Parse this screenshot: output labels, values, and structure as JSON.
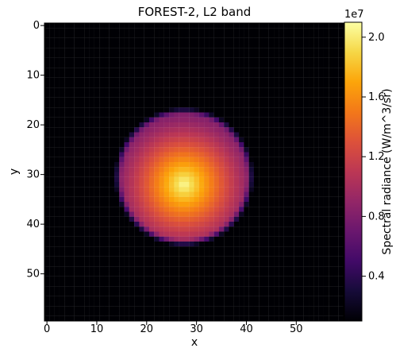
{
  "chart_data": {
    "type": "heatmap",
    "title": "FOREST-2, L2 band",
    "xlabel": "x",
    "ylabel": "y",
    "grid_size": [
      60,
      60
    ],
    "x_ticks": [
      0,
      10,
      20,
      30,
      40,
      50
    ],
    "y_ticks": [
      0,
      10,
      20,
      30,
      40,
      50
    ],
    "x_range": [
      -0.5,
      59.5
    ],
    "y_range": [
      -0.5,
      59.5
    ],
    "y_axis_inverted": true,
    "source_disk": {
      "center_x": 27.5,
      "center_y": 30.5,
      "radius": 13.5,
      "peak_center_x": 27.5,
      "peak_center_y": 32,
      "edge_value": 8500000.0,
      "peak_value": 20800000.0,
      "background_value": 500000.0
    },
    "colorbar": {
      "label": "Spectral radiance (W/m^3/sr)",
      "offset_text": "1e7",
      "ticks": [
        0.4,
        0.8,
        1.2,
        1.6,
        2.0
      ],
      "tick_labels": [
        "0.4",
        "0.8",
        "1.2",
        "1.6",
        "2.0"
      ],
      "range": [
        0.1,
        2.1
      ],
      "colormap": "inferno"
    }
  }
}
